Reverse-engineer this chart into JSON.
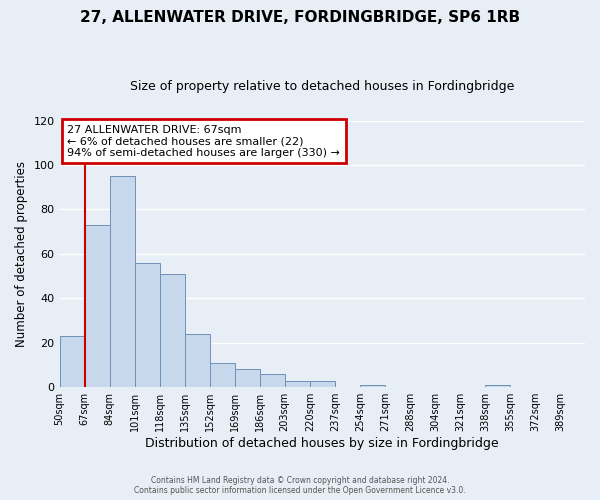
{
  "title": "27, ALLENWATER DRIVE, FORDINGBRIDGE, SP6 1RB",
  "subtitle": "Size of property relative to detached houses in Fordingbridge",
  "xlabel": "Distribution of detached houses by size in Fordingbridge",
  "ylabel": "Number of detached properties",
  "bin_labels": [
    "50sqm",
    "67sqm",
    "84sqm",
    "101sqm",
    "118sqm",
    "135sqm",
    "152sqm",
    "169sqm",
    "186sqm",
    "203sqm",
    "220sqm",
    "237sqm",
    "254sqm",
    "271sqm",
    "288sqm",
    "304sqm",
    "321sqm",
    "338sqm",
    "355sqm",
    "372sqm",
    "389sqm"
  ],
  "bar_heights": [
    23,
    73,
    95,
    56,
    51,
    24,
    11,
    8,
    6,
    3,
    3,
    0,
    1,
    0,
    0,
    0,
    0,
    1,
    0,
    0,
    0
  ],
  "bar_color": "#c8d8ec",
  "bar_edge_color": "#7090b8",
  "highlight_color": "#cc0000",
  "ylim": [
    0,
    120
  ],
  "yticks": [
    0,
    20,
    40,
    60,
    80,
    100,
    120
  ],
  "annotation_title": "27 ALLENWATER DRIVE: 67sqm",
  "annotation_line1": "← 6% of detached houses are smaller (22)",
  "annotation_line2": "94% of semi-detached houses are larger (330) →",
  "annotation_box_color": "#ffffff",
  "annotation_box_edge_color": "#cc0000",
  "footer_line1": "Contains HM Land Registry data © Crown copyright and database right 2024.",
  "footer_line2": "Contains public sector information licensed under the Open Government Licence v3.0.",
  "background_color": "#e8eef5",
  "grid_color": "#ffffff",
  "bin_width": 17
}
